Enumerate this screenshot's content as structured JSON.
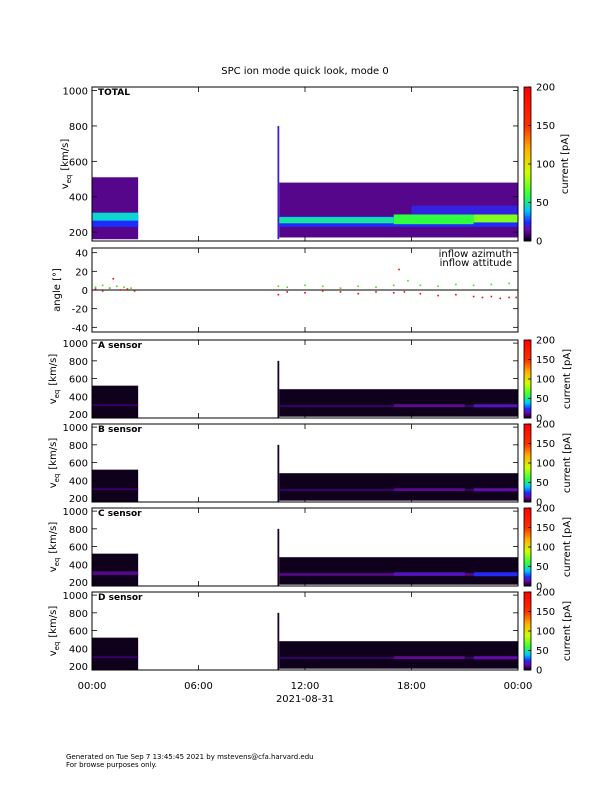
{
  "chart_data": [
    {
      "type": "heatmap",
      "title": "SPC ion mode quick look, mode 0",
      "label": "TOTAL",
      "ylabel": "v",
      "ylabel_sub": "eq",
      "ylabel_unit": "[km/s]",
      "xlim": [
        0,
        24
      ],
      "ylim": [
        150,
        1020
      ],
      "yticks": [
        200,
        400,
        600,
        800,
        1000
      ],
      "clim": [
        0,
        200
      ],
      "cticks": [
        0,
        50,
        100,
        150,
        200
      ],
      "clabel": "current [pA]",
      "cells": [
        [
          0,
          2.6,
          160,
          510,
          12
        ],
        [
          0,
          2.6,
          230,
          300,
          25
        ],
        [
          0,
          2.6,
          265,
          310,
          45
        ],
        [
          10.45,
          10.55,
          160,
          800,
          20
        ],
        [
          10.55,
          24,
          170,
          480,
          12
        ],
        [
          10.55,
          24,
          230,
          290,
          25
        ],
        [
          10.55,
          17,
          250,
          285,
          50
        ],
        [
          17,
          21.5,
          245,
          300,
          60
        ],
        [
          21.5,
          24,
          255,
          300,
          75
        ],
        [
          18,
          24,
          300,
          350,
          22
        ]
      ]
    },
    {
      "type": "scatter",
      "ylabel": "angle [°]",
      "xlim": [
        0,
        24
      ],
      "ylim": [
        -45,
        45
      ],
      "yticks": [
        -40,
        -20,
        0,
        20,
        40
      ],
      "hline": 0,
      "series": [
        {
          "name": "inflow azimuth",
          "color": "#ff0000",
          "x": [
            0.2,
            0.6,
            1.0,
            1.2,
            1.6,
            2.0,
            2.4,
            10.5,
            11,
            12,
            13,
            14,
            15,
            16,
            17,
            17.3,
            17.6,
            18.5,
            19.5,
            20.5,
            21.5,
            22,
            22.5,
            23,
            23.5,
            23.9
          ],
          "values": [
            1,
            -1,
            2,
            12,
            0,
            1,
            -1,
            -5,
            -2,
            -3,
            -1,
            -2,
            -4,
            -2,
            -3,
            22,
            -2,
            -4,
            -6,
            -5,
            -7,
            -8,
            -7,
            -9,
            -8,
            -8
          ]
        },
        {
          "name": "inflow attitude",
          "color": "#40e000",
          "x": [
            0.2,
            0.6,
            1.0,
            1.4,
            1.8,
            2.2,
            10.5,
            11,
            12,
            13,
            14,
            15,
            16,
            17,
            17.8,
            18.5,
            19.5,
            20.5,
            21.5,
            22.5,
            23.5
          ],
          "values": [
            3,
            5,
            2,
            4,
            3,
            2,
            4,
            3,
            5,
            4,
            2,
            4,
            3,
            5,
            10,
            5,
            4,
            6,
            5,
            6,
            7
          ]
        }
      ]
    },
    {
      "type": "heatmap",
      "label": "A sensor",
      "ylabel": "v",
      "ylabel_sub": "eq",
      "ylabel_unit": "[km/s]",
      "xlim": [
        0,
        24
      ],
      "ylim": [
        155,
        1035
      ],
      "yticks": [
        200,
        400,
        600,
        800,
        1000
      ],
      "clim": [
        0,
        200
      ],
      "cticks": [
        0,
        50,
        100,
        150,
        200
      ],
      "clabel": "current [pA]",
      "cells": [
        [
          0,
          2.6,
          160,
          520,
          2
        ],
        [
          0,
          2.6,
          290,
          310,
          8
        ],
        [
          10.45,
          10.55,
          160,
          800,
          3
        ],
        [
          10.55,
          24,
          170,
          480,
          2
        ],
        [
          10.55,
          24,
          280,
          300,
          8
        ],
        [
          17,
          21,
          280,
          310,
          14
        ],
        [
          21.5,
          24,
          275,
          310,
          18
        ]
      ]
    },
    {
      "type": "heatmap",
      "label": "B sensor",
      "ylabel": "v",
      "ylabel_sub": "eq",
      "ylabel_unit": "[km/s]",
      "xlim": [
        0,
        24
      ],
      "ylim": [
        155,
        1035
      ],
      "yticks": [
        200,
        400,
        600,
        800,
        1000
      ],
      "clim": [
        0,
        200
      ],
      "cticks": [
        0,
        50,
        100,
        150,
        200
      ],
      "clabel": "current [pA]",
      "cells": [
        [
          0,
          2.6,
          160,
          520,
          2
        ],
        [
          0,
          2.6,
          290,
          310,
          8
        ],
        [
          10.45,
          10.55,
          160,
          800,
          3
        ],
        [
          10.55,
          24,
          170,
          480,
          2
        ],
        [
          10.55,
          24,
          280,
          300,
          8
        ],
        [
          17,
          21,
          280,
          310,
          13
        ],
        [
          21.5,
          24,
          275,
          310,
          16
        ]
      ]
    },
    {
      "type": "heatmap",
      "label": "C sensor",
      "ylabel": "v",
      "ylabel_sub": "eq",
      "ylabel_unit": "[km/s]",
      "xlim": [
        0,
        24
      ],
      "ylim": [
        155,
        1035
      ],
      "yticks": [
        200,
        400,
        600,
        800,
        1000
      ],
      "clim": [
        0,
        200
      ],
      "cticks": [
        0,
        50,
        100,
        150,
        200
      ],
      "clabel": "current [pA]",
      "cells": [
        [
          0,
          2.6,
          160,
          520,
          2
        ],
        [
          0,
          2.6,
          280,
          320,
          12
        ],
        [
          10.45,
          10.55,
          160,
          800,
          3
        ],
        [
          10.55,
          24,
          170,
          480,
          2
        ],
        [
          10.55,
          24,
          270,
          300,
          12
        ],
        [
          17,
          21,
          270,
          310,
          18
        ],
        [
          21.5,
          24,
          265,
          310,
          24
        ]
      ]
    },
    {
      "type": "heatmap",
      "label": "D sensor",
      "ylabel": "v",
      "ylabel_sub": "eq",
      "ylabel_unit": "[km/s]",
      "xlim": [
        0,
        24
      ],
      "ylim": [
        155,
        1035
      ],
      "yticks": [
        200,
        400,
        600,
        800,
        1000
      ],
      "clim": [
        0,
        200
      ],
      "cticks": [
        0,
        50,
        100,
        150,
        200
      ],
      "clabel": "current [pA]",
      "xticks": [
        {
          "value": 0,
          "label": "00:00"
        },
        {
          "value": 6,
          "label": "06:00"
        },
        {
          "value": 12,
          "label": "12:00"
        },
        {
          "value": 18,
          "label": "18:00"
        },
        {
          "value": 24,
          "label": "00:00"
        }
      ],
      "xlabel": "2021-08-31",
      "cells": [
        [
          0,
          2.6,
          160,
          520,
          2
        ],
        [
          0,
          2.6,
          290,
          310,
          8
        ],
        [
          10.45,
          10.55,
          160,
          800,
          3
        ],
        [
          10.55,
          24,
          170,
          480,
          2
        ],
        [
          10.55,
          24,
          280,
          300,
          8
        ],
        [
          17,
          21,
          280,
          310,
          14
        ],
        [
          21.5,
          24,
          275,
          310,
          16
        ]
      ]
    }
  ],
  "footer": [
    "Generated on Tue Sep  7 13:45:45 2021 by mstevens@cfa.harvard.edu",
    "For browse purposes only."
  ]
}
